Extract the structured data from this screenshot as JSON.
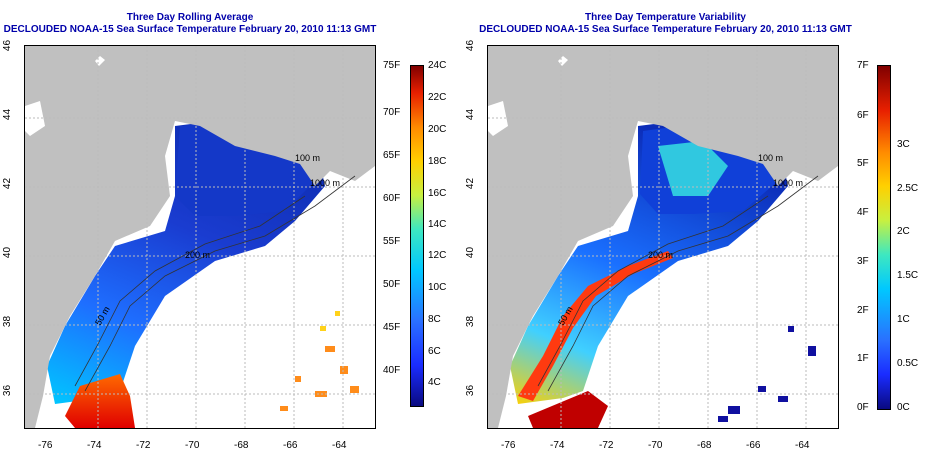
{
  "maps": [
    {
      "title_line1": "Three Day Rolling Average",
      "title_line2": "DECLOUDED NOAA-15 Sea Surface Temperature February 20, 2010 11:13 GMT",
      "lon_ticks": [
        "-76",
        "-74",
        "-72",
        "-70",
        "-68",
        "-66",
        "-64"
      ],
      "lat_ticks": [
        "36",
        "38",
        "40",
        "42",
        "44",
        "46"
      ],
      "contour_labels": [
        "100 m",
        "1000 m",
        "200 m",
        "50 m"
      ],
      "colorbar": {
        "left_labels": [
          "75F",
          "70F",
          "65F",
          "60F",
          "55F",
          "50F",
          "45F",
          "40F"
        ],
        "right_labels": [
          "24C",
          "22C",
          "20C",
          "18C",
          "16C",
          "14C",
          "12C",
          "10C",
          "8C",
          "6C",
          "4C"
        ]
      }
    },
    {
      "title_line1": "Three Day Temperature Variability",
      "title_line2": "DECLOUDED NOAA-15 Sea Surface Temperature February 20, 2010 11:13 GMT",
      "lon_ticks": [
        "-76",
        "-74",
        "-72",
        "-70",
        "-68",
        "-66",
        "-64"
      ],
      "lat_ticks": [
        "36",
        "38",
        "40",
        "42",
        "44",
        "46"
      ],
      "contour_labels": [
        "100 m",
        "1000 m",
        "200 m",
        "50 m"
      ],
      "colorbar": {
        "left_labels": [
          "7F",
          "6F",
          "5F",
          "4F",
          "3F",
          "2F",
          "1F",
          "0F"
        ],
        "right_labels": [
          "3C",
          "2.5C",
          "2C",
          "1.5C",
          "1C",
          "0.5C",
          "0C"
        ]
      }
    }
  ],
  "colors": {
    "land": "#c0c0c0",
    "title": "#0000aa",
    "grid": "#bbbbbb"
  }
}
